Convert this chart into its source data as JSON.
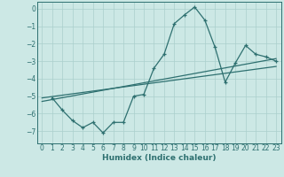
{
  "xlabel": "Humidex (Indice chaleur)",
  "background_color": "#cce8e5",
  "grid_color": "#aacfcc",
  "line_color": "#2e7070",
  "xlim": [
    -0.5,
    23.5
  ],
  "ylim": [
    -7.7,
    0.4
  ],
  "xticks": [
    0,
    1,
    2,
    3,
    4,
    5,
    6,
    7,
    8,
    9,
    10,
    11,
    12,
    13,
    14,
    15,
    16,
    17,
    18,
    19,
    20,
    21,
    22,
    23
  ],
  "yticks": [
    0,
    -1,
    -2,
    -3,
    -4,
    -5,
    -6,
    -7
  ],
  "curve_x": [
    1,
    2,
    3,
    4,
    5,
    6,
    7,
    8,
    9,
    10,
    11,
    12,
    13,
    14,
    15,
    16,
    17,
    18,
    19,
    20,
    21,
    22,
    23
  ],
  "curve_y": [
    -5.1,
    -5.8,
    -6.4,
    -6.8,
    -6.5,
    -7.1,
    -6.5,
    -6.5,
    -5.0,
    -4.9,
    -3.4,
    -2.6,
    -0.85,
    -0.35,
    0.1,
    -0.65,
    -2.2,
    -4.2,
    -3.1,
    -2.1,
    -2.6,
    -2.75,
    -3.0
  ],
  "line1_x": [
    0,
    23
  ],
  "line1_y": [
    -5.3,
    -2.85
  ],
  "line2_x": [
    0,
    23
  ],
  "line2_y": [
    -5.1,
    -3.3
  ]
}
